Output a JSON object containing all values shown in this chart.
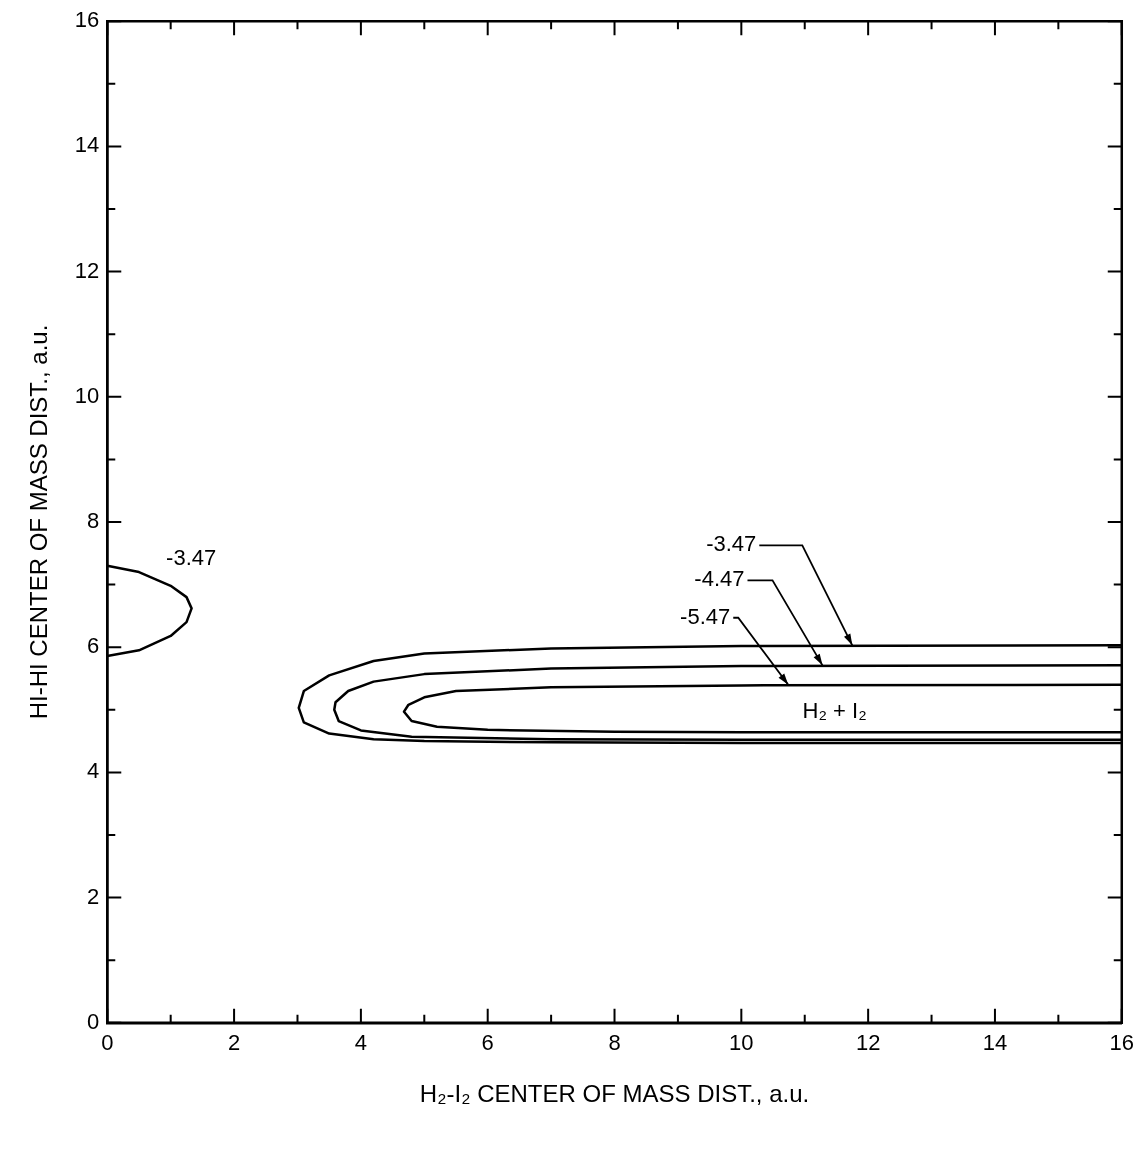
{
  "chart_data": {
    "type": "line",
    "xlabel": "H₂-I₂ CENTER OF MASS DIST., a.u.",
    "ylabel": "HI-HI CENTER OF MASS DIST., a.u.",
    "xlim": [
      0,
      16
    ],
    "ylim": [
      0,
      16
    ],
    "xticks": [
      0,
      {
        "value": 1,
        "label": null
      },
      2,
      {
        "value": 3,
        "label": null
      },
      4,
      {
        "value": 5,
        "label": null
      },
      6,
      {
        "value": 7,
        "label": null
      },
      8,
      {
        "value": 9,
        "label": null
      },
      10,
      {
        "value": 11,
        "label": null
      },
      12,
      {
        "value": 13,
        "label": null
      },
      14,
      {
        "value": 15,
        "label": null
      },
      16
    ],
    "yticks": [
      0,
      {
        "value": 1,
        "label": null
      },
      2,
      {
        "value": 3,
        "label": null
      },
      4,
      {
        "value": 5,
        "label": null
      },
      6,
      {
        "value": 7,
        "label": null
      },
      8,
      {
        "value": 9,
        "label": null
      },
      10,
      {
        "value": 11,
        "label": null
      },
      12,
      {
        "value": 13,
        "label": null
      },
      14,
      {
        "value": 15,
        "label": null
      },
      16
    ],
    "series": [
      {
        "color": "#000000",
        "x": [
          0,
          0.5,
          1.0,
          1.25,
          1.33,
          1.25,
          1.0,
          0.5,
          0
        ],
        "values": [
          7.3,
          7.2,
          6.98,
          6.8,
          6.62,
          6.4,
          6.18,
          5.95,
          5.86
        ]
      },
      {
        "color": "#000000",
        "x": [
          16,
          10,
          7,
          5,
          4.2,
          3.5,
          3.1,
          3.02,
          3.1,
          3.5,
          4.2,
          5,
          7,
          10,
          16
        ],
        "values": [
          6.03,
          6.02,
          5.98,
          5.9,
          5.78,
          5.55,
          5.3,
          5.03,
          4.8,
          4.62,
          4.53,
          4.5,
          4.48,
          4.47,
          4.47
        ]
      },
      {
        "color": "#000000",
        "x": [
          16,
          10,
          7,
          5,
          4.2,
          3.8,
          3.6,
          3.58,
          3.65,
          4.0,
          4.8,
          7,
          10,
          16
        ],
        "values": [
          5.71,
          5.7,
          5.66,
          5.57,
          5.45,
          5.3,
          5.12,
          5.0,
          4.82,
          4.67,
          4.57,
          4.53,
          4.52,
          4.52
        ]
      },
      {
        "color": "#000000",
        "x": [
          16,
          10,
          7,
          5.5,
          5.0,
          4.75,
          4.68,
          4.8,
          5.2,
          6,
          8,
          10,
          16
        ],
        "values": [
          5.4,
          5.39,
          5.36,
          5.3,
          5.2,
          5.08,
          4.97,
          4.82,
          4.73,
          4.68,
          4.65,
          4.64,
          4.64
        ]
      }
    ],
    "annotations": [
      "-3.47",
      {
        "text": "-3.47",
        "x": 11.75,
        "y": 6.03
      },
      {
        "text": "-4.47",
        "x": 11.28,
        "y": 5.71
      },
      {
        "text": "-5.47",
        "x": 10.74,
        "y": 5.4
      },
      "H₂ + I₂"
    ],
    "marker": "none",
    "line_style": "solid",
    "grid": false,
    "legend": false
  }
}
